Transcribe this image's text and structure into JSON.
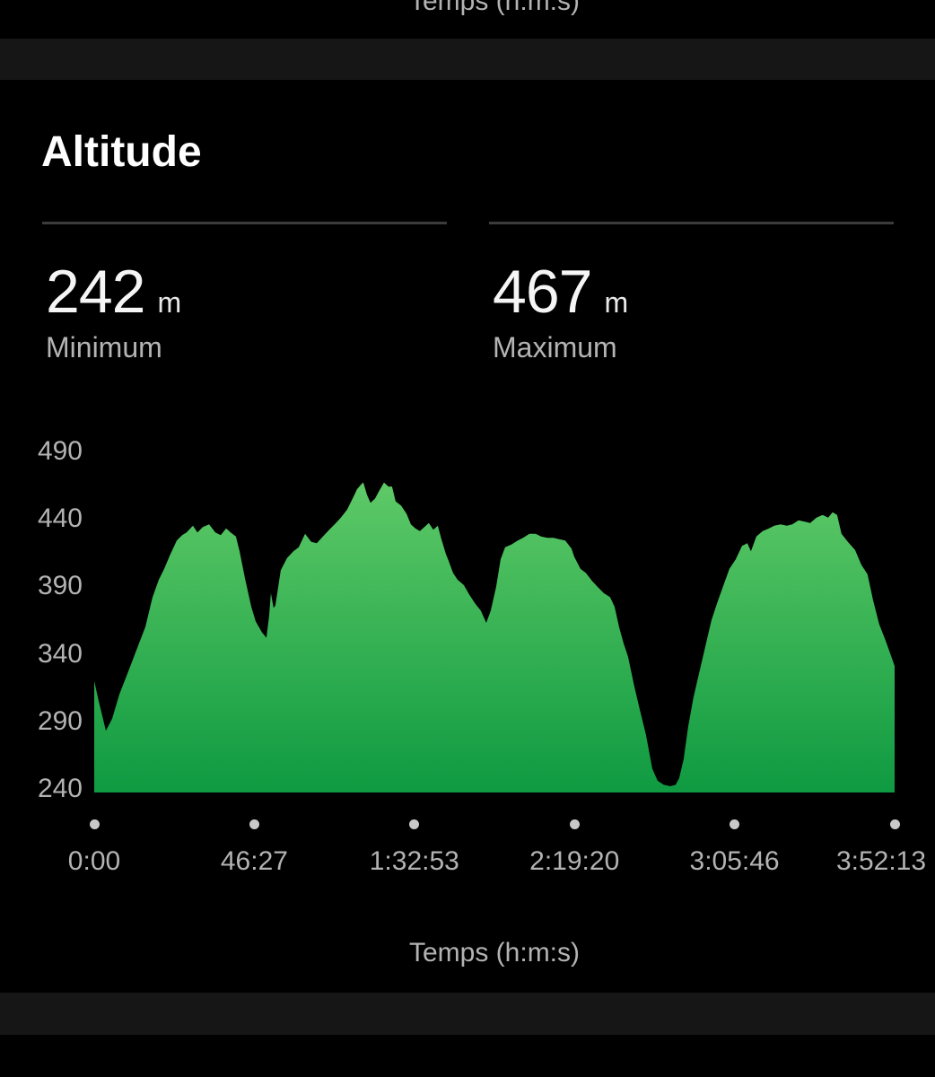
{
  "previous_section": {
    "x_axis_title": "Temps (h:m:s)"
  },
  "card": {
    "title": "Altitude",
    "stats": [
      {
        "value": "242",
        "unit": "m",
        "label": "Minimum"
      },
      {
        "value": "467",
        "unit": "m",
        "label": "Maximum"
      }
    ]
  },
  "colors": {
    "background": "#000000",
    "separator_band": "#161616",
    "divider": "#3c3c3c",
    "text_primary": "#ffffff",
    "text_secondary": "#b3b3b3",
    "tick_dot": "#c9c9c9"
  },
  "chart_data": {
    "type": "area",
    "title": "Altitude",
    "xlabel": "Temps (h:m:s)",
    "ylabel": "",
    "y_unit": "m",
    "ylim": [
      240,
      490
    ],
    "yticks": [
      490,
      440,
      390,
      340,
      290,
      240
    ],
    "grid": false,
    "legend": false,
    "x_max_seconds": 13933,
    "xticks": [
      {
        "t": 0,
        "label": "0:00"
      },
      {
        "t": 2787,
        "label": "46:27"
      },
      {
        "t": 5573,
        "label": "1:32:53"
      },
      {
        "t": 8360,
        "label": "2:19:20"
      },
      {
        "t": 11146,
        "label": "3:05:46"
      },
      {
        "t": 13933,
        "label": "3:52:13"
      }
    ],
    "min_m": 242,
    "max_m": 467,
    "colors": {
      "area_top": "#5ec967",
      "area_bottom": "#0f9a41"
    },
    "series": [
      {
        "name": "Altitude",
        "unit": "m",
        "points": [
          [
            0,
            320
          ],
          [
            78,
            305
          ],
          [
            203,
            283
          ],
          [
            312,
            292
          ],
          [
            437,
            310
          ],
          [
            547,
            322
          ],
          [
            656,
            334
          ],
          [
            781,
            348
          ],
          [
            890,
            360
          ],
          [
            1015,
            382
          ],
          [
            1124,
            395
          ],
          [
            1218,
            403
          ],
          [
            1327,
            414
          ],
          [
            1437,
            424
          ],
          [
            1530,
            428
          ],
          [
            1608,
            430
          ],
          [
            1718,
            435
          ],
          [
            1796,
            430
          ],
          [
            1890,
            434
          ],
          [
            1999,
            436
          ],
          [
            2108,
            430
          ],
          [
            2202,
            428
          ],
          [
            2296,
            433
          ],
          [
            2374,
            430
          ],
          [
            2467,
            427
          ],
          [
            2530,
            416
          ],
          [
            2624,
            396
          ],
          [
            2733,
            375
          ],
          [
            2811,
            364
          ],
          [
            2920,
            356
          ],
          [
            2998,
            352
          ],
          [
            3045,
            368
          ],
          [
            3076,
            385
          ],
          [
            3123,
            374
          ],
          [
            3154,
            376
          ],
          [
            3248,
            402
          ],
          [
            3357,
            411
          ],
          [
            3467,
            416
          ],
          [
            3560,
            419
          ],
          [
            3670,
            429
          ],
          [
            3779,
            423
          ],
          [
            3873,
            422
          ],
          [
            3982,
            427
          ],
          [
            4091,
            432
          ],
          [
            4185,
            436
          ],
          [
            4294,
            441
          ],
          [
            4404,
            447
          ],
          [
            4497,
            455
          ],
          [
            4575,
            462
          ],
          [
            4654,
            466
          ],
          [
            4685,
            467
          ],
          [
            4747,
            458
          ],
          [
            4810,
            452
          ],
          [
            4888,
            455
          ],
          [
            4950,
            460
          ],
          [
            5044,
            467
          ],
          [
            5122,
            464
          ],
          [
            5185,
            464
          ],
          [
            5247,
            453
          ],
          [
            5341,
            450
          ],
          [
            5435,
            444
          ],
          [
            5513,
            436
          ],
          [
            5591,
            433
          ],
          [
            5669,
            431
          ],
          [
            5747,
            434
          ],
          [
            5825,
            437
          ],
          [
            5903,
            432
          ],
          [
            5981,
            435
          ],
          [
            6044,
            425
          ],
          [
            6122,
            414
          ],
          [
            6169,
            409
          ],
          [
            6247,
            400
          ],
          [
            6325,
            395
          ],
          [
            6434,
            391
          ],
          [
            6528,
            384
          ],
          [
            6637,
            377
          ],
          [
            6731,
            372
          ],
          [
            6825,
            363
          ],
          [
            6903,
            372
          ],
          [
            6997,
            390
          ],
          [
            7075,
            410
          ],
          [
            7153,
            419
          ],
          [
            7262,
            421
          ],
          [
            7372,
            424
          ],
          [
            7465,
            426
          ],
          [
            7575,
            429
          ],
          [
            7684,
            429
          ],
          [
            7778,
            427
          ],
          [
            7887,
            426
          ],
          [
            7996,
            426
          ],
          [
            8090,
            425
          ],
          [
            8199,
            424
          ],
          [
            8309,
            418
          ],
          [
            8355,
            412
          ],
          [
            8465,
            403
          ],
          [
            8558,
            400
          ],
          [
            8668,
            394
          ],
          [
            8777,
            389
          ],
          [
            8871,
            385
          ],
          [
            8980,
            382
          ],
          [
            9058,
            375
          ],
          [
            9136,
            360
          ],
          [
            9214,
            348
          ],
          [
            9292,
            338
          ],
          [
            9402,
            316
          ],
          [
            9495,
            299
          ],
          [
            9605,
            280
          ],
          [
            9714,
            255
          ],
          [
            9808,
            246
          ],
          [
            9917,
            243
          ],
          [
            10026,
            242
          ],
          [
            10120,
            243
          ],
          [
            10182,
            248
          ],
          [
            10261,
            262
          ],
          [
            10339,
            286
          ],
          [
            10432,
            308
          ],
          [
            10542,
            328
          ],
          [
            10651,
            348
          ],
          [
            10745,
            365
          ],
          [
            10854,
            379
          ],
          [
            10963,
            392
          ],
          [
            11057,
            403
          ],
          [
            11167,
            410
          ],
          [
            11276,
            420
          ],
          [
            11369,
            422
          ],
          [
            11432,
            416
          ],
          [
            11526,
            427
          ],
          [
            11635,
            431
          ],
          [
            11744,
            433
          ],
          [
            11838,
            435
          ],
          [
            11947,
            436
          ],
          [
            12057,
            435
          ],
          [
            12150,
            436
          ],
          [
            12260,
            439
          ],
          [
            12369,
            438
          ],
          [
            12463,
            437
          ],
          [
            12572,
            441
          ],
          [
            12681,
            443
          ],
          [
            12775,
            441
          ],
          [
            12853,
            445
          ],
          [
            12931,
            443
          ],
          [
            13009,
            429
          ],
          [
            13119,
            423
          ],
          [
            13244,
            417
          ],
          [
            13353,
            406
          ],
          [
            13462,
            399
          ],
          [
            13556,
            380
          ],
          [
            13665,
            362
          ],
          [
            13775,
            350
          ],
          [
            13868,
            339
          ],
          [
            13933,
            331
          ]
        ]
      }
    ]
  }
}
